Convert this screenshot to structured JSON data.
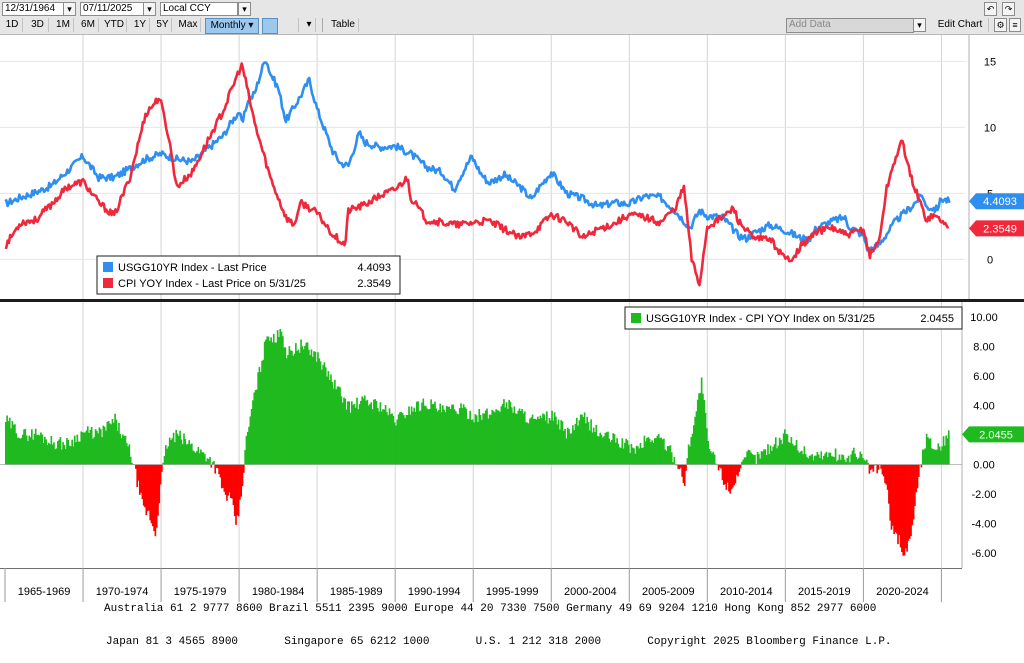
{
  "toolbar": {
    "start_date": "12/31/1964",
    "end_date": "07/11/2025",
    "currency": "Local CCY",
    "periods": [
      "1D",
      "3D",
      "1M",
      "6M",
      "YTD",
      "1Y",
      "5Y",
      "Max"
    ],
    "frequency": "Monthly ▾",
    "table_label": "Table",
    "add_data_placeholder": "Add Data",
    "edit_chart_label": "Edit Chart"
  },
  "colors": {
    "ust10y": "#2e8ff0",
    "cpi": "#f0283c",
    "spread_positive": "#1fba1f",
    "spread_negative": "#ff0000",
    "background": "#ffffff"
  },
  "chart_data": [
    {
      "type": "line",
      "legend_position": "bottom-left",
      "ylim": [
        -3,
        17
      ],
      "yticks": [
        0,
        5,
        10,
        15
      ],
      "x_range": [
        1965.0,
        2025.55
      ],
      "series": [
        {
          "name": "USGG10YR Index - Last Price",
          "last_value": "4.4093",
          "x": [
            1965.0,
            1966.0,
            1967.0,
            1968.0,
            1969.0,
            1970.0,
            1971.0,
            1972.0,
            1973.0,
            1974.0,
            1975.0,
            1976.0,
            1977.0,
            1978.0,
            1979.0,
            1979.5,
            1980.0,
            1980.2,
            1980.5,
            1981.0,
            1981.7,
            1982.0,
            1982.5,
            1983.0,
            1984.0,
            1984.5,
            1985.0,
            1986.0,
            1986.5,
            1987.0,
            1987.7,
            1988.0,
            1989.0,
            1990.0,
            1991.0,
            1992.0,
            1993.0,
            1993.8,
            1994.0,
            1994.9,
            1995.5,
            1996.0,
            1997.0,
            1998.0,
            1998.8,
            1999.0,
            2000.0,
            2001.0,
            2002.0,
            2003.0,
            2004.0,
            2005.0,
            2006.0,
            2007.0,
            2008.0,
            2008.9,
            2009.5,
            2010.0,
            2011.0,
            2012.0,
            2012.5,
            2013.0,
            2014.0,
            2015.0,
            2016.0,
            2016.5,
            2017.0,
            2018.0,
            2018.8,
            2019.0,
            2020.0,
            2020.3,
            2021.0,
            2022.0,
            2022.5,
            2023.0,
            2023.8,
            2024.0,
            2024.7,
            2025.0,
            2025.5
          ],
          "y": [
            4.2,
            4.7,
            5.1,
            5.6,
            6.7,
            7.8,
            6.2,
            6.2,
            6.9,
            7.6,
            8.0,
            7.6,
            7.4,
            8.4,
            9.4,
            10.4,
            11.2,
            10.2,
            11.8,
            12.6,
            15.3,
            14.1,
            13.0,
            10.5,
            12.5,
            13.6,
            11.4,
            8.2,
            7.3,
            7.1,
            9.6,
            8.9,
            8.5,
            8.6,
            8.0,
            7.0,
            6.6,
            5.3,
            5.9,
            7.8,
            6.5,
            5.8,
            6.4,
            5.5,
            4.5,
            5.1,
            6.6,
            5.0,
            4.6,
            4.0,
            4.3,
            4.2,
            4.8,
            4.7,
            3.6,
            2.4,
            3.7,
            3.3,
            3.2,
            1.8,
            1.6,
            2.0,
            2.6,
            2.2,
            1.6,
            1.5,
            2.4,
            2.9,
            3.2,
            2.6,
            1.8,
            0.7,
            1.1,
            2.8,
            3.4,
            3.9,
            4.9,
            4.0,
            3.8,
            4.6,
            4.41
          ]
        },
        {
          "name": "CPI YOY Index - Last Price on 5/31/25",
          "last_value": "2.3549",
          "x": [
            1965.0,
            1966.0,
            1967.0,
            1968.0,
            1969.0,
            1970.0,
            1971.0,
            1972.0,
            1973.0,
            1974.0,
            1974.9,
            1975.5,
            1976.0,
            1977.0,
            1978.0,
            1979.0,
            1980.0,
            1980.2,
            1981.0,
            1982.0,
            1983.0,
            1983.5,
            1984.0,
            1985.0,
            1986.0,
            1986.8,
            1987.0,
            1988.0,
            1989.0,
            1990.0,
            1990.8,
            1991.0,
            1992.0,
            1993.0,
            1994.0,
            1995.0,
            1996.0,
            1997.0,
            1998.0,
            1999.0,
            2000.0,
            2001.0,
            2002.0,
            2003.0,
            2004.0,
            2005.0,
            2006.0,
            2007.0,
            2008.0,
            2008.5,
            2009.0,
            2009.5,
            2010.0,
            2011.0,
            2011.7,
            2012.0,
            2013.0,
            2014.0,
            2015.0,
            2015.5,
            2016.0,
            2017.0,
            2018.0,
            2019.0,
            2020.0,
            2020.4,
            2021.0,
            2021.5,
            2022.0,
            2022.5,
            2023.0,
            2024.0,
            2024.5,
            2025.0,
            2025.42
          ],
          "y": [
            1.0,
            2.8,
            3.0,
            4.2,
            5.5,
            5.9,
            4.3,
            3.3,
            6.2,
            11.0,
            12.3,
            9.2,
            5.5,
            6.6,
            9.0,
            11.3,
            14.3,
            14.7,
            10.3,
            6.2,
            3.2,
            2.6,
            4.3,
            3.5,
            1.9,
            1.1,
            3.7,
            4.1,
            4.8,
            5.3,
            6.2,
            4.7,
            3.0,
            2.8,
            2.6,
            2.8,
            2.9,
            2.3,
            1.6,
            2.2,
            3.4,
            2.9,
            1.6,
            2.3,
            2.7,
            3.4,
            3.2,
            2.8,
            4.0,
            5.5,
            0.0,
            -1.9,
            2.5,
            3.2,
            3.9,
            2.9,
            1.5,
            1.6,
            0.0,
            0.2,
            1.0,
            2.1,
            2.4,
            1.8,
            2.3,
            0.3,
            1.4,
            5.4,
            7.5,
            9.0,
            6.4,
            3.1,
            3.3,
            3.0,
            2.35
          ]
        }
      ]
    },
    {
      "type": "area",
      "legend_position": "top-right",
      "ylim": [
        -7,
        11
      ],
      "yticks": [
        "10.00",
        "8.00",
        "6.00",
        "4.00",
        "2.00",
        "0.00",
        "-2.00",
        "-4.00",
        "-6.00"
      ],
      "xlabels": [
        "1965-1969",
        "1970-1974",
        "1975-1979",
        "1980-1984",
        "1985-1989",
        "1990-1994",
        "1995-1999",
        "2000-2004",
        "2005-2009",
        "2010-2014",
        "2015-2019",
        "2020-2024"
      ],
      "series": [
        {
          "name": "USGG10YR Index - CPI YOY Index on 5/31/25",
          "last_value": "2.0455",
          "x": [
            1965.0,
            1966.0,
            1967.0,
            1968.0,
            1969.0,
            1970.0,
            1971.0,
            1972.0,
            1973.0,
            1973.4,
            1973.8,
            1974.2,
            1974.6,
            1974.9,
            1975.3,
            1975.6,
            1976.0,
            1977.0,
            1978.0,
            1978.5,
            1979.0,
            1979.4,
            1979.8,
            1980.1,
            1980.4,
            1980.8,
            1981.2,
            1981.8,
            1982.3,
            1982.6,
            1983.0,
            1984.0,
            1985.0,
            1986.0,
            1987.0,
            1988.0,
            1989.0,
            1990.0,
            1991.0,
            1992.0,
            1993.0,
            1994.0,
            1995.0,
            1996.0,
            1997.0,
            1998.0,
            1999.0,
            2000.0,
            2001.0,
            2002.0,
            2003.0,
            2004.0,
            2005.0,
            2005.5,
            2006.0,
            2007.0,
            2008.0,
            2008.5,
            2008.8,
            2009.2,
            2009.6,
            2010.0,
            2010.5,
            2011.0,
            2011.4,
            2011.8,
            2012.2,
            2012.6,
            2013.0,
            2014.0,
            2015.0,
            2016.0,
            2016.5,
            2017.0,
            2018.0,
            2019.0,
            2019.5,
            2020.0,
            2020.5,
            2021.0,
            2021.4,
            2021.8,
            2022.2,
            2022.5,
            2022.8,
            2023.1,
            2023.4,
            2023.8,
            2024.0,
            2024.5,
            2025.0,
            2025.42
          ],
          "y": [
            3.0,
            2.0,
            2.1,
            1.5,
            1.4,
            2.2,
            2.1,
            3.0,
            0.8,
            -1.0,
            -3.0,
            -3.4,
            -4.8,
            -1.5,
            1.3,
            1.7,
            2.0,
            1.2,
            0.5,
            -0.3,
            -2.0,
            -2.3,
            -4.1,
            -2.0,
            1.5,
            4.0,
            6.0,
            9.0,
            8.2,
            9.5,
            7.5,
            8.1,
            7.3,
            5.5,
            3.9,
            4.3,
            4.0,
            3.0,
            3.8,
            4.2,
            3.6,
            3.8,
            3.3,
            3.4,
            4.2,
            3.5,
            2.9,
            3.3,
            2.1,
            3.2,
            2.1,
            1.7,
            1.2,
            1.0,
            1.7,
            1.8,
            0.2,
            -1.2,
            1.5,
            3.4,
            5.7,
            1.3,
            0.2,
            -1.0,
            -1.8,
            -0.8,
            -0.2,
            0.8,
            0.4,
            1.2,
            2.0,
            1.0,
            0.6,
            0.6,
            0.7,
            0.4,
            0.9,
            0.2,
            -0.5,
            -0.2,
            -1.3,
            -4.5,
            -5.0,
            -6.0,
            -5.6,
            -4.0,
            -1.5,
            1.0,
            1.8,
            1.2,
            1.4,
            2.0455
          ]
        }
      ]
    }
  ],
  "footer": {
    "line1": "Australia 61 2 9777 8600 Brazil 5511 2395 9000 Europe 44 20 7330 7500 Germany 49 69 9204 1210 Hong Kong 852 2977 6000",
    "line2": "Japan 81 3 4565 8900       Singapore 65 6212 1000       U.S. 1 212 318 2000       Copyright 2025 Bloomberg Finance L.P."
  }
}
